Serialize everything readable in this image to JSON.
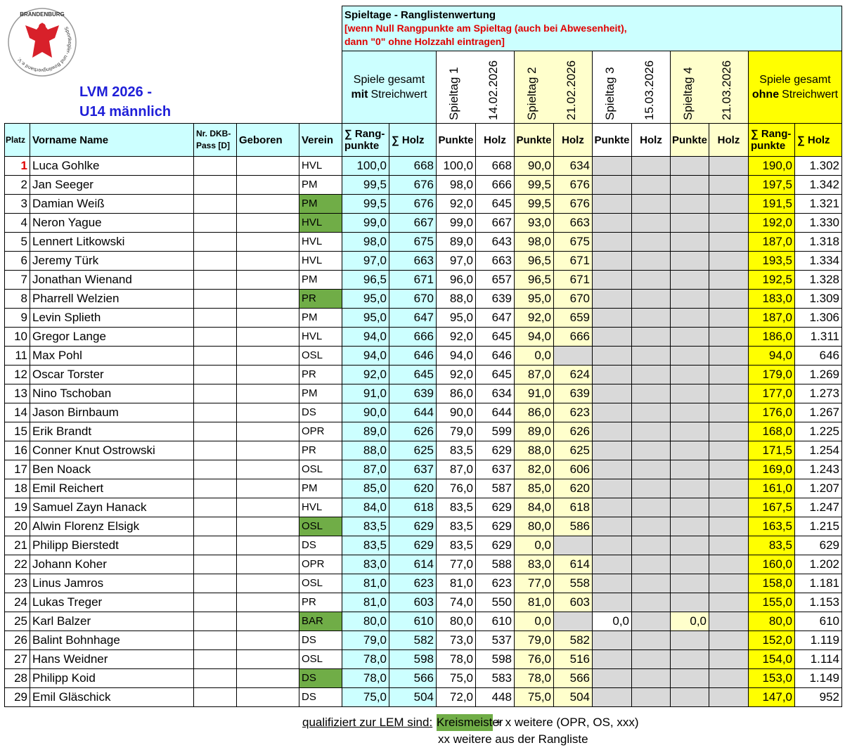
{
  "header": {
    "logo_top": "BRANDENBURG",
    "logo_ring": "Sportkegler- und Bowlingverband e.V.",
    "title_line1": "LVM 2026 -",
    "title_line2": "U14 männlich",
    "block_title": "Spieltage - Ranglistenwertung",
    "block_note": [
      "[wenn Null Rangpunkte am Spieltag (auch bei Abwesenheit),",
      "dann \"0\" ohne Holzzahl eintragen]"
    ],
    "with_streich": {
      "text": "Spiele gesamt",
      "emph": "mit",
      "after": "Streichwert"
    },
    "without_streich": {
      "text": "Spiele gesamt",
      "emph": "ohne",
      "after": "Streichwert"
    },
    "spieltage": [
      {
        "name": "Spieltag 1",
        "date": "14.02.2026"
      },
      {
        "name": "Spieltag 2",
        "date": "21.02.2026"
      },
      {
        "name": "Spieltag 3",
        "date": "15.03.2026"
      },
      {
        "name": "Spieltag 4",
        "date": "21.03.2026"
      }
    ]
  },
  "table": {
    "columns": [
      "Platz",
      "Vorname Name",
      "Nr. DKB-Pass [D]",
      "Geboren",
      "Verein",
      "∑ Rang-punkte",
      "∑ Holz",
      "Punkte",
      "Holz",
      "Punkte",
      "Holz",
      "Punkte",
      "Holz",
      "Punkte",
      "Holz",
      "∑ Rang-punkte",
      "∑ Holz"
    ],
    "kreismeister_color": "#70ad47",
    "rows": [
      {
        "cells": [
          "1",
          "Luca Gohlke",
          null,
          null,
          "HVL",
          "100,0",
          "668",
          "100,0",
          "668",
          "90,0",
          "634",
          null,
          null,
          null,
          null,
          "190,0",
          "1.302"
        ]
      },
      {
        "cells": [
          "2",
          "Jan Seeger",
          null,
          null,
          "PM",
          "99,5",
          "676",
          "98,0",
          "666",
          "99,5",
          "676",
          null,
          null,
          null,
          null,
          "197,5",
          "1.342"
        ]
      },
      {
        "cells": [
          "3",
          "Damian Weiß",
          null,
          null,
          "PM",
          "99,5",
          "676",
          "92,0",
          "645",
          "99,5",
          "676",
          null,
          null,
          null,
          null,
          "191,5",
          "1.321"
        ],
        "kreismeister": true
      },
      {
        "cells": [
          "4",
          "Neron Yague",
          null,
          null,
          "HVL",
          "99,0",
          "667",
          "99,0",
          "667",
          "93,0",
          "663",
          null,
          null,
          null,
          null,
          "192,0",
          "1.330"
        ],
        "kreismeister": true
      },
      {
        "cells": [
          "5",
          "Lennert Litkowski",
          null,
          null,
          "HVL",
          "98,0",
          "675",
          "89,0",
          "643",
          "98,0",
          "675",
          null,
          null,
          null,
          null,
          "187,0",
          "1.318"
        ]
      },
      {
        "cells": [
          "6",
          "Jeremy Türk",
          null,
          null,
          "HVL",
          "97,0",
          "663",
          "97,0",
          "663",
          "96,5",
          "671",
          null,
          null,
          null,
          null,
          "193,5",
          "1.334"
        ]
      },
      {
        "cells": [
          "7",
          "Jonathan Wienand",
          null,
          null,
          "PM",
          "96,5",
          "671",
          "96,0",
          "657",
          "96,5",
          "671",
          null,
          null,
          null,
          null,
          "192,5",
          "1.328"
        ]
      },
      {
        "cells": [
          "8",
          "Pharrell Welzien",
          null,
          null,
          "PR",
          "95,0",
          "670",
          "88,0",
          "639",
          "95,0",
          "670",
          null,
          null,
          null,
          null,
          "183,0",
          "1.309"
        ],
        "kreismeister": true
      },
      {
        "cells": [
          "9",
          "Levin Splieth",
          null,
          null,
          "PM",
          "95,0",
          "647",
          "95,0",
          "647",
          "92,0",
          "659",
          null,
          null,
          null,
          null,
          "187,0",
          "1.306"
        ]
      },
      {
        "cells": [
          "10",
          "Gregor Lange",
          null,
          null,
          "HVL",
          "94,0",
          "666",
          "92,0",
          "645",
          "94,0",
          "666",
          null,
          null,
          null,
          null,
          "186,0",
          "1.311"
        ]
      },
      {
        "cells": [
          "11",
          "Max Pohl",
          null,
          null,
          "OSL",
          "94,0",
          "646",
          "94,0",
          "646",
          "0,0",
          null,
          null,
          null,
          null,
          null,
          "94,0",
          "646"
        ]
      },
      {
        "cells": [
          "12",
          "Oscar Torster",
          null,
          null,
          "PR",
          "92,0",
          "645",
          "92,0",
          "645",
          "87,0",
          "624",
          null,
          null,
          null,
          null,
          "179,0",
          "1.269"
        ]
      },
      {
        "cells": [
          "13",
          "Nino Tschoban",
          null,
          null,
          "PM",
          "91,0",
          "639",
          "86,0",
          "634",
          "91,0",
          "639",
          null,
          null,
          null,
          null,
          "177,0",
          "1.273"
        ]
      },
      {
        "cells": [
          "14",
          "Jason Birnbaum",
          null,
          null,
          "DS",
          "90,0",
          "644",
          "90,0",
          "644",
          "86,0",
          "623",
          null,
          null,
          null,
          null,
          "176,0",
          "1.267"
        ]
      },
      {
        "cells": [
          "15",
          "Erik Brandt",
          null,
          null,
          "OPR",
          "89,0",
          "626",
          "79,0",
          "599",
          "89,0",
          "626",
          null,
          null,
          null,
          null,
          "168,0",
          "1.225"
        ]
      },
      {
        "cells": [
          "16",
          "Conner Knut Ostrowski",
          null,
          null,
          "PR",
          "88,0",
          "625",
          "83,5",
          "629",
          "88,0",
          "625",
          null,
          null,
          null,
          null,
          "171,5",
          "1.254"
        ]
      },
      {
        "cells": [
          "17",
          "Ben Noack",
          null,
          null,
          "OSL",
          "87,0",
          "637",
          "87,0",
          "637",
          "82,0",
          "606",
          null,
          null,
          null,
          null,
          "169,0",
          "1.243"
        ]
      },
      {
        "cells": [
          "18",
          "Emil Reichert",
          null,
          null,
          "PM",
          "85,0",
          "620",
          "76,0",
          "587",
          "85,0",
          "620",
          null,
          null,
          null,
          null,
          "161,0",
          "1.207"
        ]
      },
      {
        "cells": [
          "19",
          "Samuel Zayn Hanack",
          null,
          null,
          "HVL",
          "84,0",
          "618",
          "83,5",
          "629",
          "84,0",
          "618",
          null,
          null,
          null,
          null,
          "167,5",
          "1.247"
        ]
      },
      {
        "cells": [
          "20",
          "Alwin Florenz Elsigk",
          null,
          null,
          "OSL",
          "83,5",
          "629",
          "83,5",
          "629",
          "80,0",
          "586",
          null,
          null,
          null,
          null,
          "163,5",
          "1.215"
        ],
        "kreismeister": true
      },
      {
        "cells": [
          "21",
          "Philipp Bierstedt",
          null,
          null,
          "DS",
          "83,5",
          "629",
          "83,5",
          "629",
          "0,0",
          null,
          null,
          null,
          null,
          null,
          "83,5",
          "629"
        ]
      },
      {
        "cells": [
          "22",
          "Johann Koher",
          null,
          null,
          "OPR",
          "83,0",
          "614",
          "77,0",
          "588",
          "83,0",
          "614",
          null,
          null,
          null,
          null,
          "160,0",
          "1.202"
        ]
      },
      {
        "cells": [
          "23",
          "Linus Jamros",
          null,
          null,
          "OSL",
          "81,0",
          "623",
          "81,0",
          "623",
          "77,0",
          "558",
          null,
          null,
          null,
          null,
          "158,0",
          "1.181"
        ]
      },
      {
        "cells": [
          "24",
          "Lukas Treger",
          null,
          null,
          "PR",
          "81,0",
          "603",
          "74,0",
          "550",
          "81,0",
          "603",
          null,
          null,
          null,
          null,
          "155,0",
          "1.153"
        ]
      },
      {
        "cells": [
          "25",
          "Karl Balzer",
          null,
          null,
          "BAR",
          "80,0",
          "610",
          "80,0",
          "610",
          "0,0",
          null,
          "0,0",
          null,
          "0,0",
          null,
          "80,0",
          "610"
        ],
        "kreismeister": true
      },
      {
        "cells": [
          "26",
          "Balint Bohnhage",
          null,
          null,
          "DS",
          "79,0",
          "582",
          "73,0",
          "537",
          "79,0",
          "582",
          null,
          null,
          null,
          null,
          "152,0",
          "1.119"
        ]
      },
      {
        "cells": [
          "27",
          "Hans Weidner",
          null,
          null,
          "OSL",
          "78,0",
          "598",
          "78,0",
          "598",
          "76,0",
          "516",
          null,
          null,
          null,
          null,
          "154,0",
          "1.114"
        ]
      },
      {
        "cells": [
          "28",
          "Philipp Koid",
          null,
          null,
          "DS",
          "78,0",
          "566",
          "75,0",
          "583",
          "78,0",
          "566",
          null,
          null,
          null,
          null,
          "153,0",
          "1.149"
        ],
        "kreismeister": true
      },
      {
        "cells": [
          "29",
          "Emil Gläschick",
          null,
          null,
          "DS",
          "75,0",
          "504",
          "72,0",
          "448",
          "75,0",
          "504",
          null,
          null,
          null,
          null,
          "147,0",
          "952"
        ]
      }
    ]
  },
  "footer": {
    "label": "qualifiziert zur LEM sind:",
    "badge": "Kreismeister",
    "rest": "+ x weitere (OPR, OS, xxx)",
    "line2": "xx weitere aus der Rangliste"
  }
}
